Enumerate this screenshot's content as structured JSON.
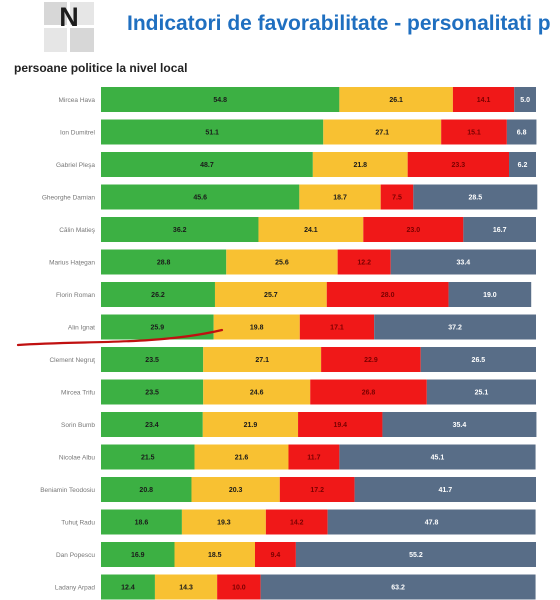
{
  "header": {
    "title": "Indicatori de favorabilitate - personalitati p",
    "logo_letter": "N"
  },
  "chart_data": {
    "type": "bar",
    "stacked": true,
    "orientation": "horizontal",
    "subtitle": "persoane politice la nivel local",
    "categories": [
      "Mircea Hava",
      "Ion Dumitrel",
      "Gabriel Pleşa",
      "Gheorghe Damian",
      "Călin Matieş",
      "Marius Haţegan",
      "Florin Roman",
      "Alin Ignat",
      "Clement Negruţ",
      "Mircea Trifu",
      "Sorin Bumb",
      "Nicolae Albu",
      "Beniamin Teodosiu",
      "Tuhuţ Radu",
      "Dan Popescu",
      "Ladany Arpad"
    ],
    "series": [
      {
        "color": "#3cb043",
        "values": [
          54.8,
          51.1,
          48.7,
          45.6,
          36.2,
          28.8,
          26.2,
          25.9,
          23.5,
          23.5,
          23.4,
          21.5,
          20.8,
          18.6,
          16.9,
          12.4
        ]
      },
      {
        "color": "#f8c132",
        "values": [
          26.1,
          27.1,
          21.8,
          18.7,
          24.1,
          25.6,
          25.7,
          19.8,
          27.1,
          24.6,
          21.9,
          21.6,
          20.3,
          19.3,
          18.5,
          14.3
        ]
      },
      {
        "color": "#f01818",
        "values": [
          14.1,
          15.1,
          23.3,
          7.5,
          23.0,
          12.2,
          28.0,
          17.1,
          22.9,
          26.8,
          19.4,
          11.7,
          17.2,
          14.2,
          9.4,
          10.0
        ]
      },
      {
        "color": "#586d87",
        "values": [
          5.0,
          6.8,
          6.2,
          28.5,
          16.7,
          33.4,
          19.0,
          37.2,
          26.5,
          25.1,
          35.4,
          45.1,
          41.7,
          47.8,
          55.2,
          63.2
        ]
      }
    ],
    "xlim": [
      0,
      100
    ],
    "grid": false,
    "legend": "none"
  }
}
